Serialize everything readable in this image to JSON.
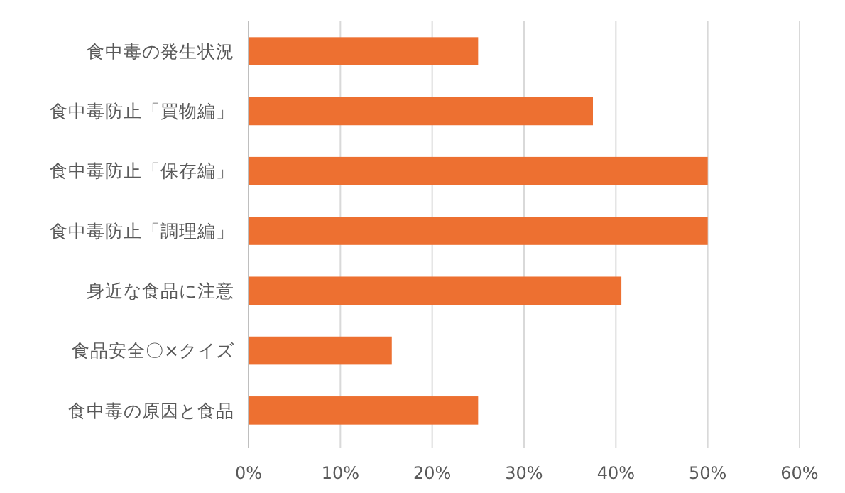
{
  "chart_data": {
    "type": "bar",
    "orientation": "horizontal",
    "categories": [
      "食中毒の発生状況",
      "食中毒防止「買物編」",
      "食中毒防止「保存編」",
      "食中毒防止「調理編」",
      "身近な食品に注意",
      "食品安全〇×クイズ",
      "食中毒の原因と食品"
    ],
    "values": [
      25,
      37.5,
      50,
      50,
      40.6,
      15.6,
      25
    ],
    "color": "#ed7031",
    "xlim": [
      0,
      60
    ],
    "xticks": [
      {
        "value": 0,
        "label": "0%"
      },
      {
        "value": 10,
        "label": "10%"
      },
      {
        "value": 20,
        "label": "20%"
      },
      {
        "value": 30,
        "label": "30%"
      },
      {
        "value": 40,
        "label": "40%"
      },
      {
        "value": 50,
        "label": "50%"
      },
      {
        "value": 60,
        "label": "60%"
      }
    ],
    "grid": "x"
  }
}
